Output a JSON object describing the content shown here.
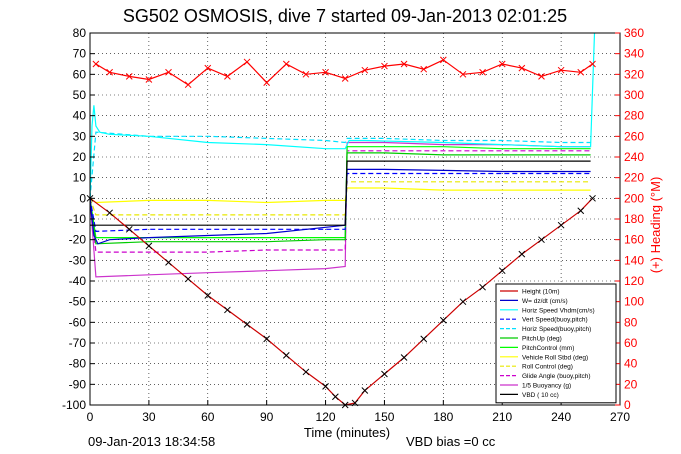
{
  "figure": {
    "title": "SG502 OSMOSIS, dive 7 started 09-Jan-2013 02:01:25",
    "timestamp": "09-Jan-2013 18:34:58",
    "vbd_bias": "VBD bias =0 cc",
    "colors": {
      "heading": "#ff0000",
      "height": "#cc0000",
      "wdzdt": "#0000cc",
      "horiz_speed_hdm": "#00ffff",
      "vert_speed": "#0000ff",
      "horiz_speed_buoy": "#00e0ff",
      "pitch_up": "#00cc00",
      "pitch_control": "#00ff00",
      "vehicle_roll": "#ffff00",
      "roll_control": "#e8e800",
      "glide_angle": "#cc00cc",
      "buoyancy": "#cc33cc",
      "vbd": "#000000"
    }
  },
  "chart_data": {
    "type": "line",
    "title": "SG502 OSMOSIS, dive 7 started 09-Jan-2013 02:01:25",
    "xlabel": "Time (minutes)",
    "ylabel": "",
    "y2label": "(+) Heading (°M)",
    "xlim": [
      0,
      270
    ],
    "ylim": [
      -100,
      80
    ],
    "y2lim": [
      0,
      360
    ],
    "grid": true,
    "legend_position": "bottom-right",
    "x_ticks": [
      0,
      30,
      60,
      90,
      120,
      150,
      180,
      210,
      240,
      270
    ],
    "y_ticks": [
      -100,
      -90,
      -80,
      -70,
      -60,
      -50,
      -40,
      -30,
      -20,
      -10,
      0,
      10,
      20,
      30,
      40,
      50,
      60,
      70,
      80
    ],
    "y2_ticks": [
      0,
      20,
      40,
      60,
      80,
      100,
      120,
      140,
      160,
      180,
      200,
      220,
      240,
      260,
      280,
      300,
      320,
      340,
      360
    ],
    "legend": [
      "Height (10m)",
      "W= dz/dt (cm/s)",
      "Horiz Speed Vhdm(cm/s)",
      "Vert Speed(buoy,pitch)",
      "Horiz Speed(buoy,pitch)",
      "PitchUp (deg)",
      "PitchControl (mm)",
      "Vehicle Roll Stbd (deg)",
      "Roll Control (deg)",
      "Glide Angle (buoy,pitch)",
      "1/5 Buoyancy (g)",
      "VBD ( 10 cc)"
    ],
    "series": [
      {
        "name": "Height (10m)",
        "x": [
          0,
          10,
          20,
          30,
          40,
          50,
          60,
          70,
          80,
          90,
          100,
          110,
          120,
          125,
          130,
          135,
          140,
          150,
          160,
          170,
          180,
          190,
          200,
          210,
          220,
          230,
          240,
          250,
          256
        ],
        "values": [
          0,
          -7,
          -15,
          -23,
          -31,
          -39,
          -47,
          -54,
          -61,
          -68,
          -76,
          -84,
          -91,
          -96,
          -100,
          -99,
          -93,
          -85,
          -77,
          -68,
          -59,
          -50,
          -43,
          -35,
          -27,
          -20,
          -13,
          -6,
          0
        ]
      },
      {
        "name": "W= dz/dt (cm/s)",
        "x": [
          0,
          1,
          2,
          4,
          10,
          30,
          60,
          90,
          120,
          130,
          131,
          135,
          150,
          180,
          210,
          240,
          255
        ],
        "values": [
          0,
          -10,
          -18,
          -22,
          -20,
          -19,
          -18,
          -17,
          -14,
          -13,
          14,
          14,
          14,
          13.5,
          13,
          13,
          13
        ]
      },
      {
        "name": "Horiz Speed Vhdm(cm/s)",
        "x": [
          0,
          1,
          2,
          3,
          5,
          10,
          30,
          60,
          90,
          120,
          130,
          132,
          140,
          180,
          210,
          240,
          255,
          257
        ],
        "values": [
          0,
          35,
          45,
          35,
          32,
          31,
          30,
          27,
          26,
          24,
          24,
          28,
          28,
          27,
          26,
          25,
          25,
          80
        ]
      },
      {
        "name": "Vert Speed(buoy,pitch)",
        "x": [
          0,
          3,
          30,
          60,
          90,
          120,
          130,
          131,
          150,
          180,
          210,
          240,
          255
        ],
        "values": [
          0,
          -16,
          -15,
          -15,
          -15,
          -15,
          -15,
          12,
          12,
          12,
          12,
          12,
          12
        ]
      },
      {
        "name": "Horiz Speed(buoy,pitch)",
        "x": [
          0,
          3,
          30,
          60,
          90,
          120,
          130,
          131,
          150,
          180,
          210,
          240,
          255
        ],
        "values": [
          0,
          32,
          30,
          30,
          29,
          28,
          27,
          29,
          29,
          28,
          28,
          27,
          27
        ]
      },
      {
        "name": "PitchUp (deg)",
        "x": [
          0,
          3,
          30,
          60,
          90,
          120,
          130,
          131,
          150,
          180,
          210,
          240,
          255
        ],
        "values": [
          0,
          -22,
          -21,
          -21,
          -21,
          -20,
          -20,
          22,
          22,
          21,
          21,
          21,
          21
        ]
      },
      {
        "name": "PitchControl (mm)",
        "x": [
          0,
          3,
          30,
          60,
          90,
          120,
          130,
          131,
          150,
          180,
          210,
          240,
          255
        ],
        "values": [
          0,
          -19,
          -19,
          -19,
          -19,
          -19,
          -19,
          25,
          25,
          25,
          24,
          24,
          24
        ]
      },
      {
        "name": "Vehicle Roll Stbd (deg)",
        "x": [
          0,
          3,
          30,
          60,
          90,
          120,
          130,
          131,
          150,
          180,
          210,
          240,
          255
        ],
        "values": [
          0,
          -2,
          -1,
          -1,
          -2,
          -1,
          -1,
          5,
          5,
          4,
          4,
          4,
          4
        ]
      },
      {
        "name": "Roll Control (deg)",
        "x": [
          0,
          3,
          30,
          60,
          90,
          120,
          130,
          131,
          150,
          180,
          210,
          240,
          255
        ],
        "values": [
          0,
          -8,
          -8,
          -8,
          -8,
          -8,
          -8,
          8,
          8,
          8,
          8,
          8,
          8
        ]
      },
      {
        "name": "Glide Angle (buoy,pitch)",
        "x": [
          0,
          3,
          30,
          60,
          90,
          120,
          130,
          131,
          150,
          180,
          210,
          240,
          255
        ],
        "values": [
          0,
          -26,
          -26,
          -26,
          -25,
          -25,
          -25,
          23,
          23,
          23,
          23,
          23,
          23
        ]
      },
      {
        "name": "1/5 Buoyancy (g)",
        "x": [
          0,
          3,
          30,
          60,
          90,
          120,
          130,
          131,
          150,
          180,
          210,
          240,
          255
        ],
        "values": [
          0,
          -38,
          -37,
          -36,
          -35,
          -34,
          -33,
          27,
          27,
          26,
          26,
          25,
          25
        ]
      },
      {
        "name": "VBD ( 10 cc)",
        "x": [
          0,
          3,
          130,
          131,
          255
        ],
        "values": [
          -13,
          -13,
          -13,
          18,
          18
        ]
      },
      {
        "name": "Heading",
        "axis": "right",
        "x": [
          3,
          10,
          20,
          30,
          40,
          50,
          60,
          70,
          80,
          90,
          100,
          110,
          120,
          130,
          140,
          150,
          160,
          170,
          180,
          190,
          200,
          210,
          220,
          230,
          240,
          250,
          256
        ],
        "values": [
          330,
          322,
          318,
          315,
          322,
          310,
          326,
          318,
          332,
          312,
          330,
          320,
          322,
          316,
          324,
          328,
          330,
          325,
          334,
          320,
          322,
          330,
          326,
          318,
          324,
          322,
          330
        ]
      }
    ]
  }
}
